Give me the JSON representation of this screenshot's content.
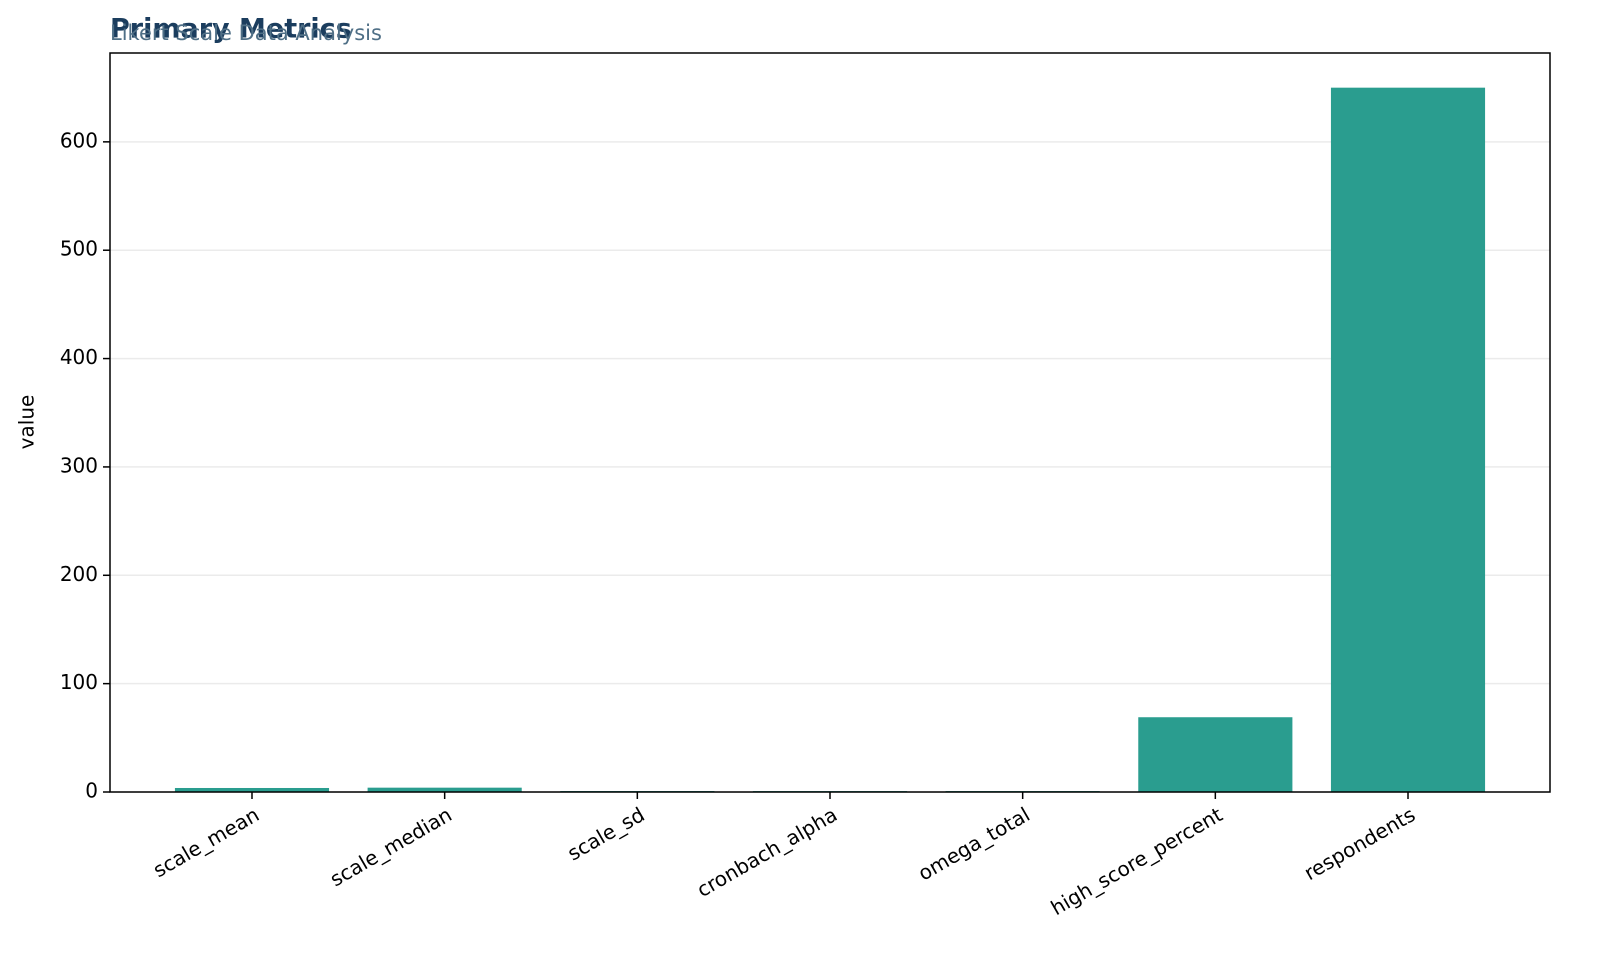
{
  "chart_data": {
    "type": "bar",
    "title": "Primary Metrics",
    "subtitle": "Likert Scale Data Analysis",
    "y_label": "value",
    "categories": [
      "scale_mean",
      "scale_median",
      "scale_sd",
      "cronbach_alpha",
      "omega_total",
      "high_score_percent",
      "respondents"
    ],
    "values": [
      3.7,
      4,
      0.9,
      0.85,
      0.87,
      69,
      650
    ],
    "color": "#2a9d8f",
    "ylim": [
      0,
      682
    ],
    "yticks": [
      0,
      100,
      200,
      300,
      400,
      500,
      600
    ],
    "grid": true
  }
}
